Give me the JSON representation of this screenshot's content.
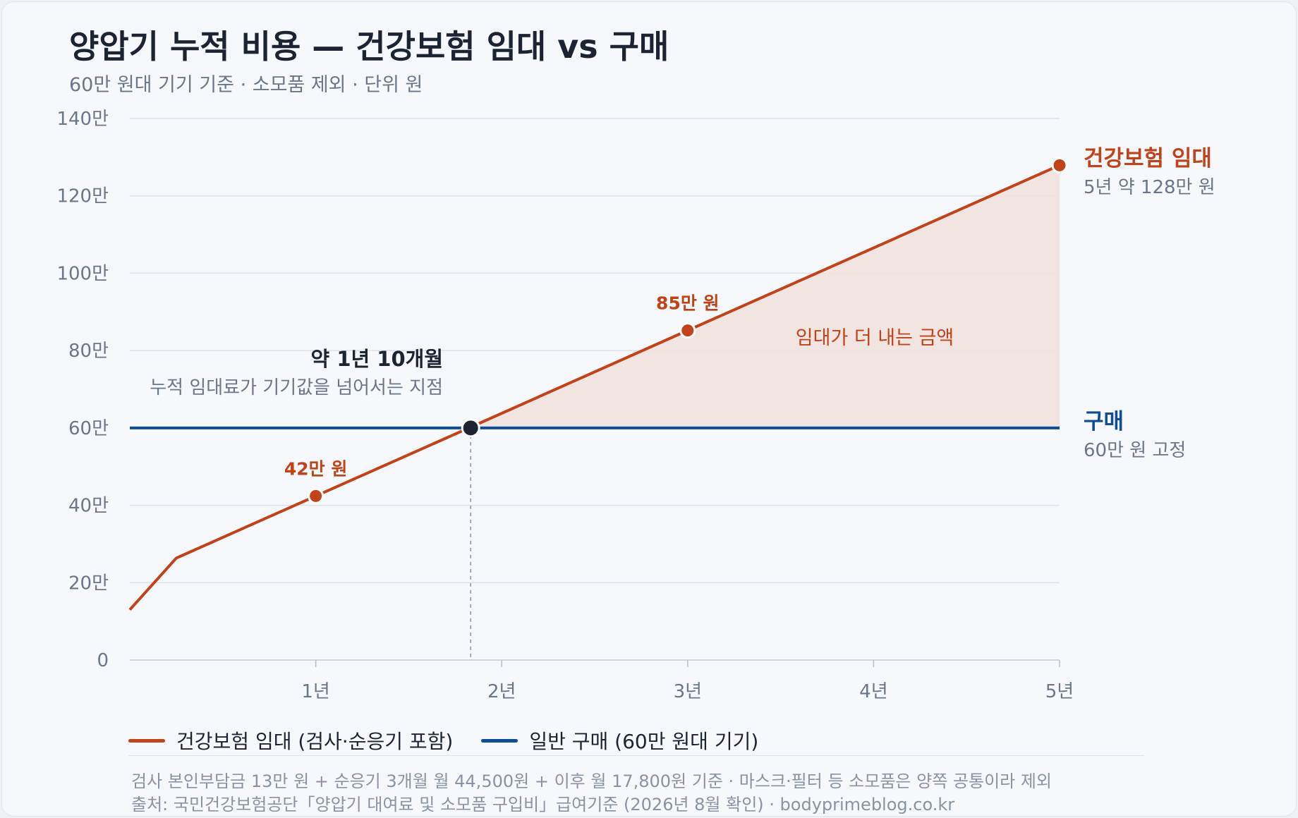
{
  "title": "양압기 누적 비용 — 건강보험 임대 vs 구매",
  "subtitle": "60만 원대 기기 기준 · 소모품 제외 · 단위 원",
  "colors": {
    "rental": "#c0431b",
    "purchase": "#0f4c97",
    "area": "#f2e1de",
    "grid": "#dde1e8",
    "text": "#1c2333",
    "muted": "#6b7689"
  },
  "chart_data": {
    "type": "line",
    "xlim": [
      0,
      5
    ],
    "ylim": [
      0,
      140
    ],
    "unit": "만 원",
    "y_ticks": [
      {
        "value": 0,
        "label": "0"
      },
      {
        "value": 20,
        "label": "20만"
      },
      {
        "value": 40,
        "label": "40만"
      },
      {
        "value": 60,
        "label": "60만"
      },
      {
        "value": 80,
        "label": "80만"
      },
      {
        "value": 100,
        "label": "100만"
      },
      {
        "value": 120,
        "label": "120만"
      },
      {
        "value": 140,
        "label": "140만"
      }
    ],
    "x_ticks": [
      {
        "value": 1,
        "label": "1년"
      },
      {
        "value": 2,
        "label": "2년"
      },
      {
        "value": 3,
        "label": "3년"
      },
      {
        "value": 4,
        "label": "4년"
      },
      {
        "value": 5,
        "label": "5년"
      }
    ],
    "series": [
      {
        "key": "rental",
        "x": [
          0,
          0.25,
          1,
          1.833,
          3,
          5
        ],
        "y": [
          13,
          26.35,
          42.4,
          60.2,
          85.2,
          127.9
        ],
        "end_title": "건강보험 임대",
        "end_note": "5년 약 128만 원"
      },
      {
        "key": "purchase",
        "x": [
          0,
          5
        ],
        "y": [
          60,
          60
        ],
        "end_title": "구매",
        "end_note": "60만 원 고정"
      }
    ],
    "point_labels": [
      {
        "x": 1,
        "y": 42.4,
        "label": "42만 원"
      },
      {
        "x": 3,
        "y": 85.2,
        "label": "85만 원"
      }
    ],
    "end_point": {
      "x": 5,
      "y": 127.9
    },
    "crossover": {
      "x": 1.833,
      "y": 60,
      "title": "약 1년 10개월",
      "note": "누적 임대료가 기기값을 넘어서는 지점"
    },
    "area_label": "임대가 더 내는 금액",
    "legend": [
      {
        "key": "rental",
        "label": "건강보험 임대 (검사·순응기 포함)"
      },
      {
        "key": "purchase",
        "label": "일반 구매 (60만 원대 기기)"
      }
    ]
  },
  "footnotes": [
    "검사 본인부담금 13만 원 + 순응기 3개월 월 44,500원 + 이후 월 17,800원 기준 · 마스크·필터 등 소모품은 양쪽 공통이라 제외",
    "출처: 국민건강보험공단「양압기 대여료 및 소모품 구입비」급여기준 (2026년 8월 확인) · bodyprimeblog.co.kr"
  ]
}
